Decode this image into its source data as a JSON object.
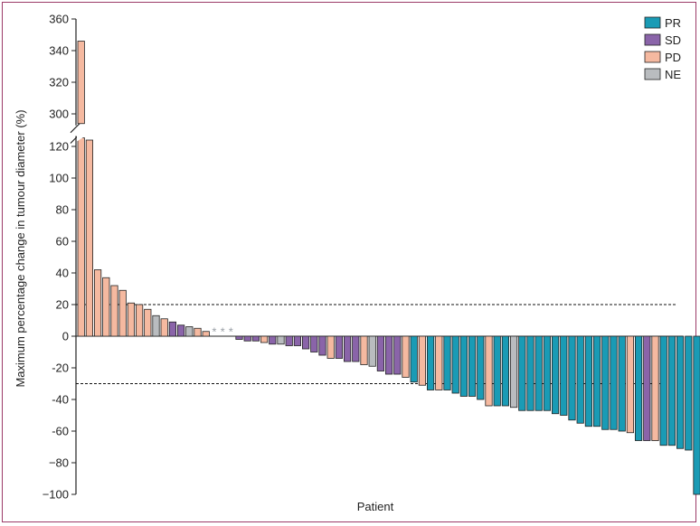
{
  "chart_data": {
    "type": "bar",
    "xlabel": "Patient",
    "ylabel": "Maximum percentage change in tumour diameter (%)",
    "ylim": [
      -100,
      360
    ],
    "axis_break": {
      "below": 130,
      "above": 295
    },
    "y_ticks_lower": [
      -100,
      -80,
      -60,
      -40,
      -20,
      0,
      20,
      40,
      60,
      80,
      100,
      120
    ],
    "y_ticks_upper": [
      300,
      320,
      340,
      360
    ],
    "tick_labels": {
      "360": "360",
      "340": "340",
      "320": "320",
      "300": "300",
      "120": "120",
      "100": "100",
      "80": "80",
      "60": "60",
      "40": "40",
      "20": "20",
      "0": "0",
      "-20": "-20",
      "-40": "-40",
      "-60": "-60",
      "-80": "−80",
      "-100": "−100"
    },
    "reference_lines": [
      20,
      -30
    ],
    "grid": false,
    "legend_position": "top-right",
    "legend": [
      {
        "key": "PR",
        "label": "PR",
        "color": "#1a9bb5"
      },
      {
        "key": "SD",
        "label": "SD",
        "color": "#8a64a9"
      },
      {
        "key": "PD",
        "label": "PD",
        "color": "#f5b9a0"
      },
      {
        "key": "NE",
        "label": "NE",
        "color": "#b9bcbf"
      }
    ],
    "asterisk_marker": "*",
    "bars": [
      {
        "value": 346,
        "category": "PD"
      },
      {
        "value": 124,
        "category": "PD"
      },
      {
        "value": 42,
        "category": "PD"
      },
      {
        "value": 37,
        "category": "PD"
      },
      {
        "value": 32,
        "category": "PD"
      },
      {
        "value": 29,
        "category": "PD"
      },
      {
        "value": 21,
        "category": "PD"
      },
      {
        "value": 20,
        "category": "PD"
      },
      {
        "value": 17,
        "category": "PD"
      },
      {
        "value": 13,
        "category": "NE"
      },
      {
        "value": 11,
        "category": "PD"
      },
      {
        "value": 9,
        "category": "SD"
      },
      {
        "value": 7,
        "category": "SD"
      },
      {
        "value": 6,
        "category": "NE"
      },
      {
        "value": 5,
        "category": "PD"
      },
      {
        "value": 3,
        "category": "PD"
      },
      {
        "value": 0,
        "category": "NE",
        "marker": "*"
      },
      {
        "value": 0,
        "category": "NE",
        "marker": "*"
      },
      {
        "value": 0,
        "category": "NE",
        "marker": "*"
      },
      {
        "value": -2,
        "category": "SD"
      },
      {
        "value": -3,
        "category": "SD"
      },
      {
        "value": -3,
        "category": "SD"
      },
      {
        "value": -4,
        "category": "PD"
      },
      {
        "value": -5,
        "category": "SD"
      },
      {
        "value": -5,
        "category": "NE"
      },
      {
        "value": -6,
        "category": "SD"
      },
      {
        "value": -6,
        "category": "SD"
      },
      {
        "value": -8,
        "category": "SD"
      },
      {
        "value": -10,
        "category": "SD"
      },
      {
        "value": -12,
        "category": "SD"
      },
      {
        "value": -14,
        "category": "PD"
      },
      {
        "value": -14,
        "category": "SD"
      },
      {
        "value": -16,
        "category": "SD"
      },
      {
        "value": -16,
        "category": "SD"
      },
      {
        "value": -18,
        "category": "PD"
      },
      {
        "value": -19,
        "category": "NE"
      },
      {
        "value": -22,
        "category": "SD"
      },
      {
        "value": -24,
        "category": "SD"
      },
      {
        "value": -24,
        "category": "SD"
      },
      {
        "value": -26,
        "category": "PD"
      },
      {
        "value": -29,
        "category": "PR"
      },
      {
        "value": -31,
        "category": "PD"
      },
      {
        "value": -34,
        "category": "PR"
      },
      {
        "value": -34,
        "category": "PD"
      },
      {
        "value": -34,
        "category": "PR"
      },
      {
        "value": -36,
        "category": "PR"
      },
      {
        "value": -38,
        "category": "PR"
      },
      {
        "value": -38,
        "category": "PR"
      },
      {
        "value": -40,
        "category": "PR"
      },
      {
        "value": -44,
        "category": "PD"
      },
      {
        "value": -44,
        "category": "PR"
      },
      {
        "value": -44,
        "category": "PR"
      },
      {
        "value": -45,
        "category": "NE"
      },
      {
        "value": -47,
        "category": "PR"
      },
      {
        "value": -47,
        "category": "PR"
      },
      {
        "value": -47,
        "category": "PR"
      },
      {
        "value": -47,
        "category": "PR"
      },
      {
        "value": -49,
        "category": "PR"
      },
      {
        "value": -50,
        "category": "PR"
      },
      {
        "value": -53,
        "category": "PR"
      },
      {
        "value": -55,
        "category": "PR"
      },
      {
        "value": -57,
        "category": "PR"
      },
      {
        "value": -57,
        "category": "PR"
      },
      {
        "value": -59,
        "category": "PR"
      },
      {
        "value": -59,
        "category": "PR"
      },
      {
        "value": -60,
        "category": "PR"
      },
      {
        "value": -61,
        "category": "PD"
      },
      {
        "value": -66,
        "category": "PR"
      },
      {
        "value": -66,
        "category": "SD"
      },
      {
        "value": -66,
        "category": "PD"
      },
      {
        "value": -69,
        "category": "PR"
      },
      {
        "value": -69,
        "category": "PR"
      },
      {
        "value": -71,
        "category": "PR"
      },
      {
        "value": -72,
        "category": "PR"
      },
      {
        "value": -100,
        "category": "PR"
      }
    ]
  }
}
